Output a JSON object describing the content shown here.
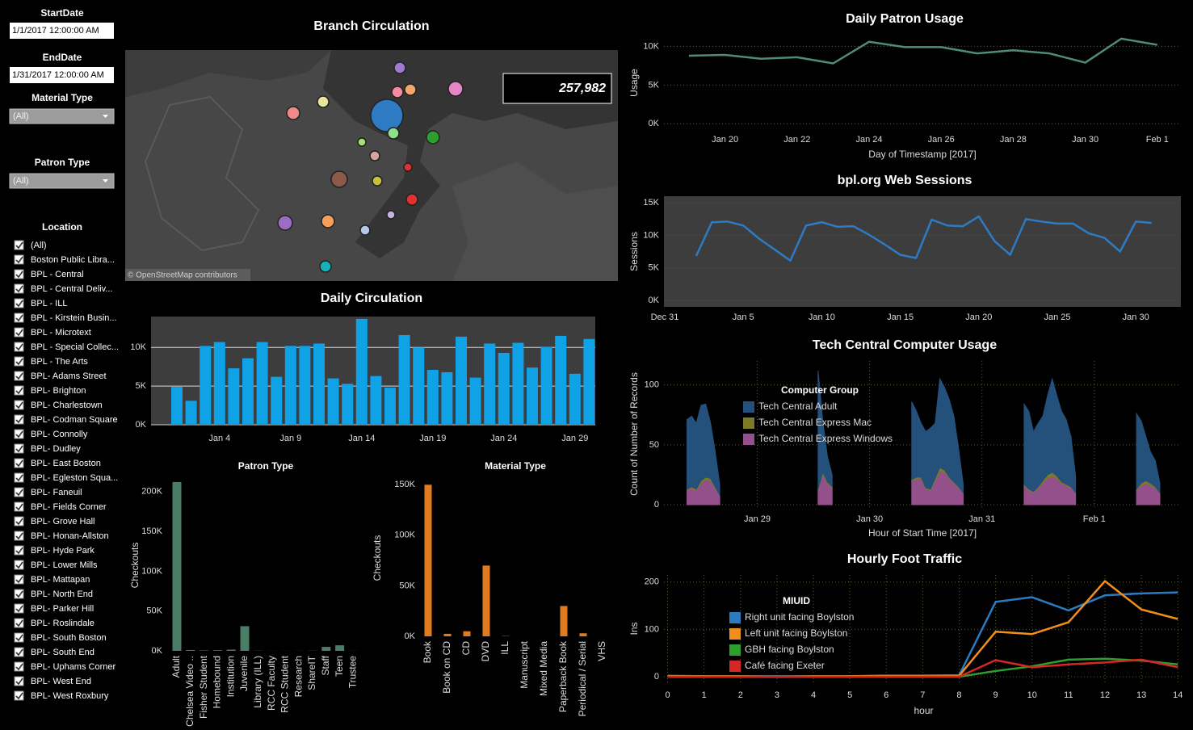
{
  "filters": {
    "start_date": {
      "label": "StartDate",
      "value": "1/1/2017 12:00:00 AM"
    },
    "end_date": {
      "label": "EndDate",
      "value": "1/31/2017 12:00:00 AM"
    },
    "material_type": {
      "label": "Material Type",
      "value": "(All)"
    },
    "patron_type": {
      "label": "Patron Type",
      "value": "(All)"
    },
    "location": {
      "label": "Location",
      "options": [
        "(All)",
        "Boston Public Libra...",
        "BPL - Central",
        "BPL - Central Deliv...",
        "BPL - ILL",
        "BPL - Kirstein Busin...",
        "BPL - Microtext",
        "BPL - Special Collec...",
        "BPL - The Arts",
        "BPL- Adams Street",
        "BPL- Brighton",
        "BPL- Charlestown",
        "BPL- Codman Square",
        "BPL- Connolly",
        "BPL- Dudley",
        "BPL- East Boston",
        "BPL- Egleston Squa...",
        "BPL- Faneuil",
        "BPL- Fields Corner",
        "BPL- Grove Hall",
        "BPL- Honan-Allston",
        "BPL- Hyde Park",
        "BPL- Lower Mills",
        "BPL- Mattapan",
        "BPL- North End",
        "BPL- Parker Hill",
        "BPL- Roslindale",
        "BPL- South Boston",
        "BPL- South End",
        "BPL- Uphams Corner",
        "BPL- West End",
        "BPL- West Roxbury"
      ]
    }
  },
  "chart_data": [
    {
      "type": "map",
      "title": "Branch Circulation",
      "total": {
        "value": 257982,
        "label": "257,982"
      },
      "attribution": "© OpenStreetMap contributors",
      "points": [
        {
          "color": "#9e7bd0",
          "value": 9200
        },
        {
          "color": "#f58aa0",
          "value": 9200
        },
        {
          "color": "#f5a66b",
          "value": 9200
        },
        {
          "color": "#e586c8",
          "value": 15100
        },
        {
          "color": "#e8e69a",
          "value": 9200
        },
        {
          "color": "#f08a8a",
          "value": 12000
        },
        {
          "color": "#2e7bc4",
          "value": 75000
        },
        {
          "color": "#8fe08a",
          "value": 9200
        },
        {
          "color": "#a8e070",
          "value": 4700
        },
        {
          "color": "#2ca02c",
          "value": 12000
        },
        {
          "color": "#d4a5a0",
          "value": 6700
        },
        {
          "color": "#e03030",
          "value": 4700
        },
        {
          "color": "#8c5a4a",
          "value": 18700
        },
        {
          "color": "#c8c03c",
          "value": 6700
        },
        {
          "color": "#e03232",
          "value": 9200
        },
        {
          "color": "#9c6bc4",
          "value": 15100
        },
        {
          "color": "#f5a05a",
          "value": 12000
        },
        {
          "color": "#c6b4e0",
          "value": 4700
        },
        {
          "color": "#b4c8e8",
          "value": 6700
        },
        {
          "color": "#18b0b8",
          "value": 9200
        }
      ]
    },
    {
      "type": "bar",
      "title": "Daily Circulation",
      "color": "#10a2e6",
      "grid": true,
      "categories": [
        null,
        null,
        null,
        "Jan 4",
        null,
        null,
        null,
        null,
        "Jan 9",
        null,
        null,
        null,
        null,
        "Jan 14",
        null,
        null,
        null,
        null,
        "Jan 19",
        null,
        null,
        null,
        null,
        "Jan 24",
        null,
        null,
        null,
        null,
        "Jan 29",
        null
      ],
      "values": [
        4900,
        3100,
        10200,
        10700,
        7300,
        8600,
        10700,
        6200,
        10200,
        10200,
        10500,
        6000,
        5300,
        13700,
        6300,
        4800,
        11600,
        10000,
        7100,
        6800,
        11400,
        6100,
        10500,
        9300,
        10600,
        7400,
        10100,
        11500,
        6600,
        11100
      ],
      "ylim": [
        0,
        14000
      ],
      "yticks": [
        {
          "value": 0,
          "label": "0K"
        },
        {
          "value": 5000,
          "label": "5K"
        },
        {
          "value": 10000,
          "label": "10K"
        }
      ]
    },
    {
      "type": "bar",
      "title": "Patron Type",
      "ylabel": "Checkouts",
      "color": "#4a7d66",
      "grid": false,
      "categories": [
        "Adult",
        "Chelsea Video ..",
        "Fisher Student",
        "Homebound",
        "Institution",
        "Juvenile",
        "Library (ILL)",
        "RCC Faculty",
        "RCC Student",
        "Research",
        "ShareIT",
        "Staff",
        "Teen",
        "Trustee"
      ],
      "values": [
        212000,
        1000,
        500,
        800,
        1500,
        31000,
        200,
        100,
        100,
        100,
        200,
        5000,
        7000,
        100
      ],
      "ylim": [
        0,
        215000
      ],
      "yticks": [
        {
          "value": 0,
          "label": "0K"
        },
        {
          "value": 50000,
          "label": "50K"
        },
        {
          "value": 100000,
          "label": "100K"
        },
        {
          "value": 150000,
          "label": "150K"
        },
        {
          "value": 200000,
          "label": "200K"
        }
      ]
    },
    {
      "type": "bar",
      "title": "Material Type",
      "ylabel": "Checkouts",
      "color": "#e07b22",
      "grid": false,
      "categories": [
        "Book",
        "Book on CD",
        "CD",
        "DVD",
        "ILL",
        "Manuscript",
        "Mixed Media",
        "Paperback Book",
        "Periodical / Serial",
        "VHS"
      ],
      "values": [
        150000,
        2500,
        5000,
        70000,
        300,
        0,
        0,
        30000,
        3000,
        0
      ],
      "ylim": [
        0,
        155000
      ],
      "yticks": [
        {
          "value": 0,
          "label": "0K"
        },
        {
          "value": 50000,
          "label": "50K"
        },
        {
          "value": 100000,
          "label": "100K"
        },
        {
          "value": 150000,
          "label": "150K"
        }
      ]
    },
    {
      "type": "line",
      "title": "Daily Patron Usage",
      "xlabel": "Day of Timestamp [2017]",
      "ylabel": "Usage",
      "color": "#4f8a7b",
      "grid": true,
      "categories": [
        null,
        "Jan 20",
        null,
        "Jan 22",
        null,
        "Jan 24",
        null,
        "Jan 26",
        null,
        "Jan 28",
        null,
        "Jan 30",
        null,
        "Feb 1"
      ],
      "values": [
        8800,
        8900,
        8400,
        8600,
        7800,
        10600,
        9900,
        9900,
        9100,
        9500,
        9100,
        7900,
        11000,
        10200
      ],
      "ylim": [
        -700,
        11300
      ],
      "yticks": [
        {
          "value": 0,
          "label": "0K"
        },
        {
          "value": 5000,
          "label": "5K"
        },
        {
          "value": 10000,
          "label": "10K"
        }
      ]
    },
    {
      "type": "line",
      "title": "bpl.org Web Sessions",
      "ylabel": "Sessions",
      "color": "#2e7bc4",
      "grid": true,
      "categories": [
        "Dec 31",
        null,
        null,
        null,
        null,
        "Jan 5",
        null,
        null,
        null,
        null,
        "Jan 10",
        null,
        null,
        null,
        null,
        "Jan 15",
        null,
        null,
        null,
        null,
        "Jan 20",
        null,
        null,
        null,
        null,
        "Jan 25",
        null,
        null,
        null,
        null,
        "Jan 30",
        null
      ],
      "values": [
        null,
        null,
        6800,
        12000,
        12100,
        11500,
        9500,
        7800,
        6100,
        11500,
        12000,
        11300,
        11400,
        10100,
        8600,
        7000,
        6500,
        12400,
        11500,
        11400,
        12900,
        9100,
        7000,
        12500,
        12100,
        11800,
        11800,
        10300,
        9600,
        7500,
        12100,
        11900
      ],
      "ylim": [
        -1000,
        16000
      ],
      "yticks": [
        {
          "value": 0,
          "label": "0K"
        },
        {
          "value": 5000,
          "label": "5K"
        },
        {
          "value": 10000,
          "label": "10K"
        },
        {
          "value": 15000,
          "label": "15K"
        }
      ]
    },
    {
      "type": "area",
      "title": "Tech Central Computer Usage",
      "xlabel": "Hour of Start Time [2017]",
      "ylabel": "Count of Number of Records",
      "legend_title": "Computer Group",
      "stacked": true,
      "grid": true,
      "x": [
        28.375,
        28.4167,
        28.4583,
        28.5,
        28.5417,
        28.5833,
        28.625,
        28.6667,
        28.7083,
        29.5417,
        29.5833,
        29.625,
        29.6667,
        29.7083,
        30.375,
        30.4167,
        30.4583,
        30.5,
        30.5417,
        30.5833,
        30.625,
        30.6667,
        30.7083,
        30.75,
        30.7917,
        30.8333,
        30.875,
        31.375,
        31.4167,
        31.4583,
        31.5,
        31.5417,
        31.5833,
        31.625,
        31.6667,
        31.7083,
        31.75,
        31.7917,
        31.8333,
        31.875,
        32.375,
        32.4167,
        32.4583,
        32.5,
        32.5417,
        32.5833
      ],
      "series": [
        {
          "name": "Tech Central Adult",
          "color": "#24507c",
          "values": [
            58,
            59,
            55,
            63,
            61,
            47,
            30,
            9,
            null,
            99,
            43,
            21,
            10,
            null,
            65,
            55,
            45,
            47,
            51,
            46,
            74,
            69,
            65,
            55,
            32,
            7,
            null,
            67,
            65,
            50,
            53,
            54,
            66,
            78,
            67,
            59,
            54,
            42,
            14,
            null,
            63,
            52,
            37,
            26,
            22,
            8
          ]
        },
        {
          "name": "Tech Central Express Mac",
          "color": "#7d7a24",
          "values": [
            1,
            1,
            1,
            2,
            2,
            2,
            1,
            0,
            null,
            1,
            2,
            1,
            1,
            null,
            1,
            1,
            1,
            1,
            1,
            2,
            3,
            2,
            1,
            1,
            1,
            0,
            null,
            1,
            1,
            1,
            1,
            2,
            3,
            3,
            2,
            1,
            1,
            1,
            0,
            null,
            1,
            2,
            2,
            2,
            1,
            0
          ]
        },
        {
          "name": "Tech Central Express Windows",
          "color": "#94508a",
          "values": [
            12,
            14,
            12,
            18,
            21,
            20,
            14,
            8,
            null,
            12,
            25,
            18,
            14,
            null,
            20,
            22,
            22,
            13,
            12,
            20,
            28,
            27,
            22,
            18,
            14,
            10,
            null,
            16,
            12,
            10,
            14,
            18,
            22,
            24,
            22,
            18,
            16,
            14,
            10,
            null,
            12,
            16,
            18,
            16,
            14,
            10
          ]
        }
      ],
      "xlim": [
        28.17,
        32.77
      ],
      "xticks": [
        {
          "value": 29,
          "label": "Jan 29"
        },
        {
          "value": 30,
          "label": "Jan 30"
        },
        {
          "value": 31,
          "label": "Jan 31"
        },
        {
          "value": 32,
          "label": "Feb 1"
        }
      ],
      "ylim": [
        -2,
        120
      ],
      "yticks": [
        0,
        50,
        100
      ]
    },
    {
      "type": "line",
      "title": "Hourly Foot Traffic",
      "xlabel": "hour",
      "ylabel": "Ins",
      "legend_title": "MIUID",
      "grid": true,
      "x": [
        0,
        1,
        2,
        3,
        4,
        5,
        6,
        7,
        8,
        9,
        10,
        11,
        12,
        13,
        14
      ],
      "series": [
        {
          "name": "Right unit facing Boylston",
          "color": "#2b7bc0",
          "values": [
            2,
            1,
            1,
            1,
            1,
            1,
            2,
            2,
            3,
            158,
            168,
            140,
            172,
            176,
            178
          ]
        },
        {
          "name": "Left unit facing Boylston",
          "color": "#f28e1c",
          "values": [
            1,
            1,
            1,
            0,
            1,
            1,
            2,
            2,
            2,
            95,
            90,
            115,
            202,
            142,
            122
          ]
        },
        {
          "name": "GBH  facing Boylston",
          "color": "#2ca02c",
          "values": [
            0,
            0,
            0,
            0,
            0,
            0,
            0,
            0,
            0,
            12,
            22,
            36,
            38,
            34,
            26
          ]
        },
        {
          "name": "Café facing Exeter",
          "color": "#d62728",
          "values": [
            0,
            0,
            0,
            0,
            0,
            0,
            0,
            0,
            0,
            35,
            20,
            26,
            30,
            36,
            20
          ]
        }
      ],
      "xlim": [
        -0.1,
        14.15
      ],
      "xticks": [
        0,
        1,
        2,
        3,
        4,
        5,
        6,
        7,
        8,
        9,
        10,
        11,
        12,
        13,
        14
      ],
      "ylim": [
        -12,
        215
      ],
      "yticks": [
        0,
        100,
        200
      ]
    }
  ]
}
